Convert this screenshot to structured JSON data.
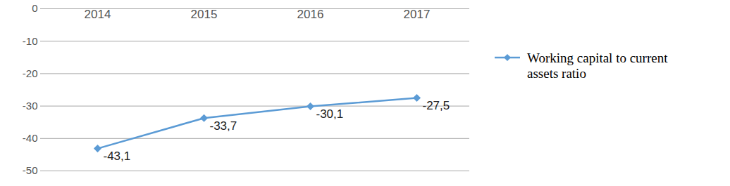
{
  "chart_data": {
    "type": "line",
    "categories": [
      "2014",
      "2015",
      "2016",
      "2017"
    ],
    "series": [
      {
        "name": "Working capital to current assets ratio",
        "color": "#5b9bd5",
        "values": [
          -43.1,
          -33.7,
          -30.1,
          -27.5
        ],
        "value_labels": [
          "-43,1",
          "-33,7",
          "-30,1",
          "-27,5"
        ],
        "marker": "diamond"
      }
    ],
    "ylim": [
      -50,
      0
    ],
    "yticks": [
      -50,
      -40,
      -30,
      -20,
      -10,
      0
    ],
    "grid": true,
    "data_labels": true,
    "legend": "right"
  }
}
